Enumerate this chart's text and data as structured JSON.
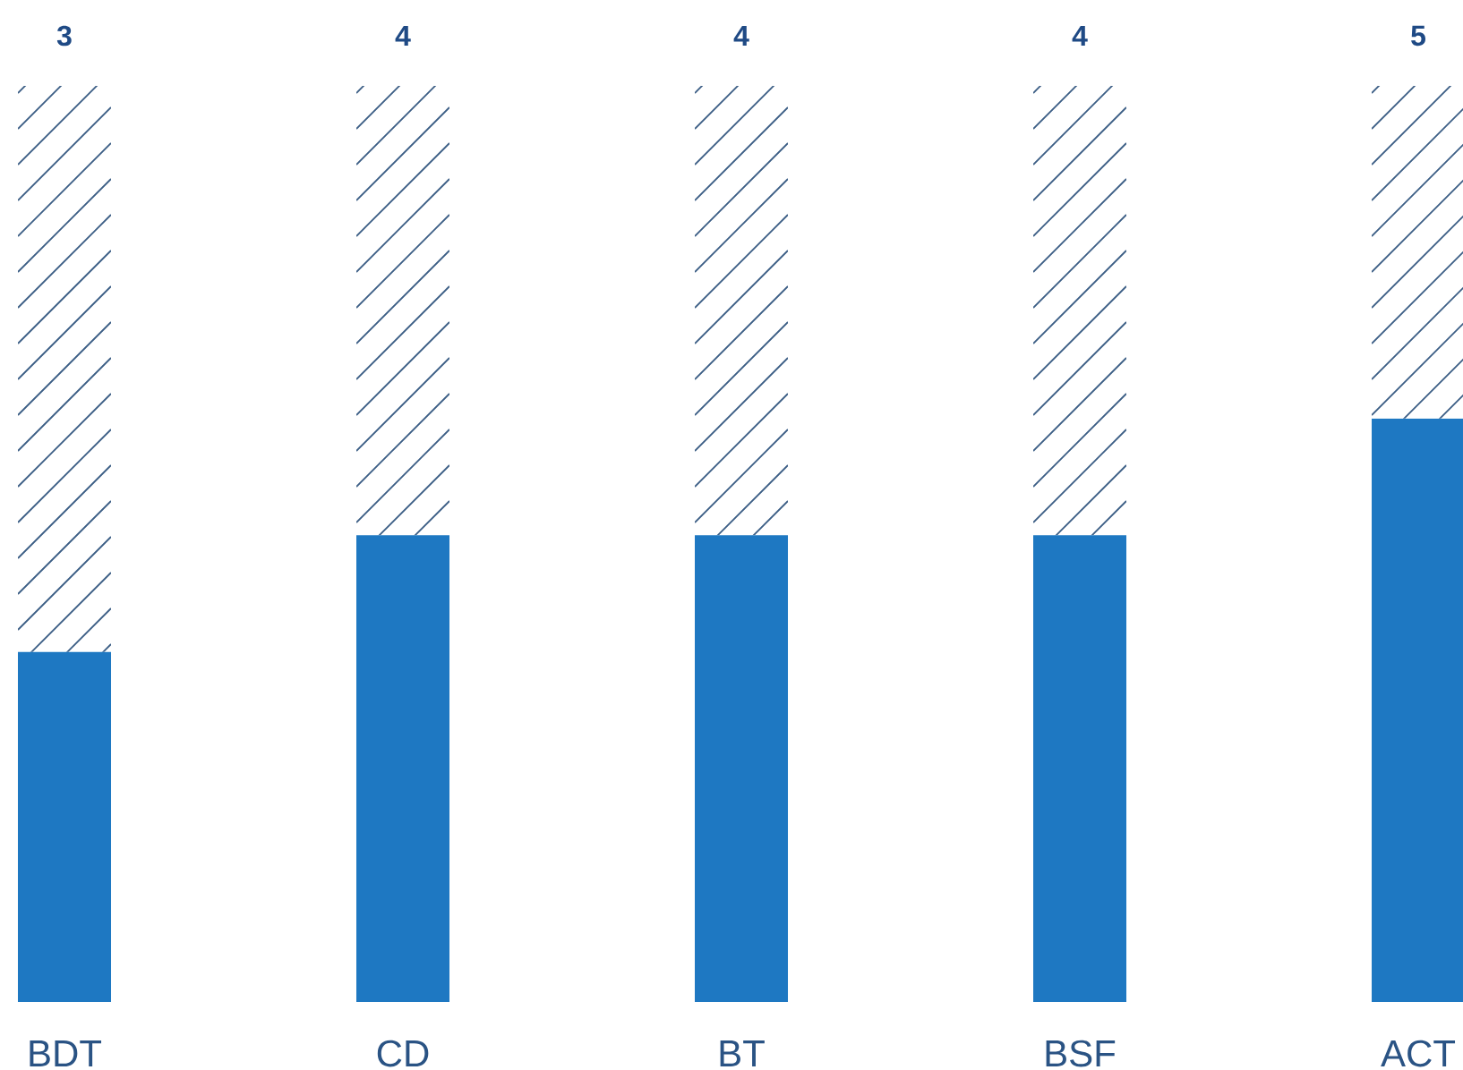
{
  "chart_data": {
    "type": "bar",
    "categories": [
      "BDT",
      "CD",
      "BT",
      "BSF",
      "ACT"
    ],
    "values": [
      3,
      4,
      4,
      4,
      5
    ],
    "color": "#1e78c2",
    "data_labels": true
  }
}
